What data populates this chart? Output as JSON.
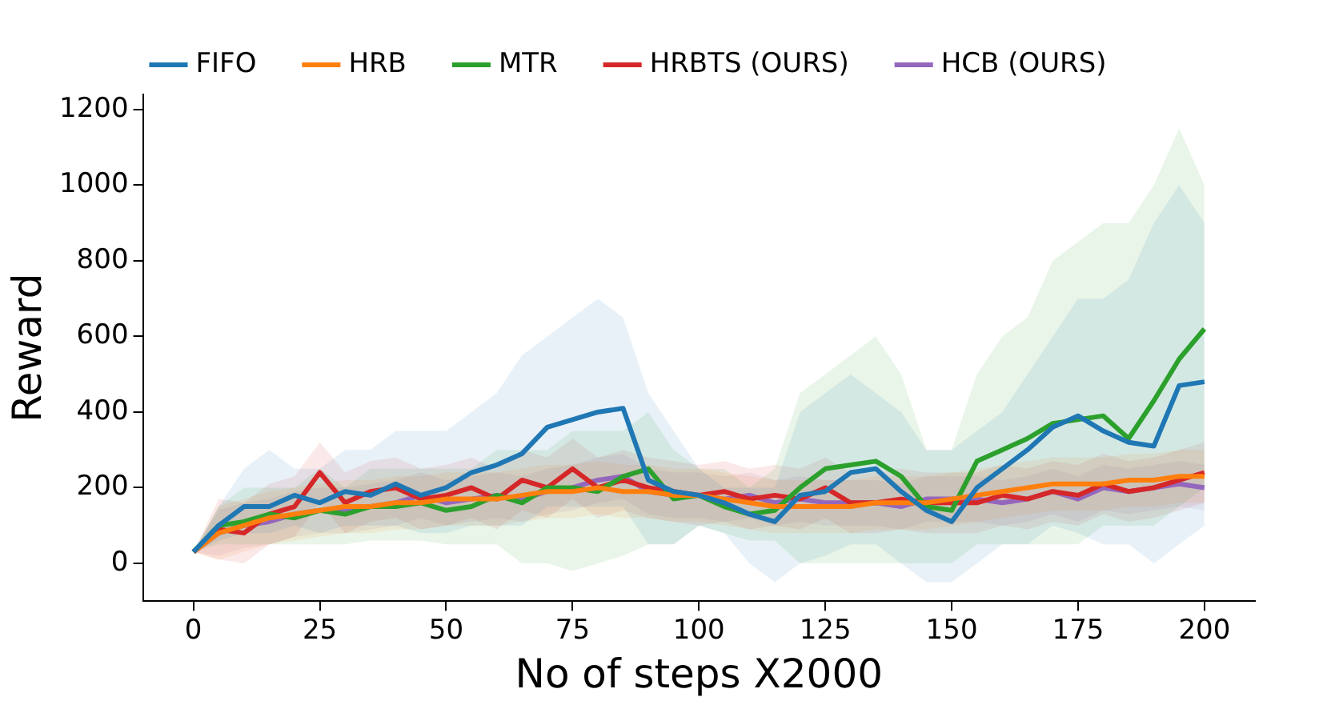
{
  "chart_data": {
    "type": "line",
    "xlabel": "No of steps X2000",
    "ylabel": "Reward",
    "xlim": [
      -10,
      210
    ],
    "ylim": [
      -100,
      1240
    ],
    "xticks": [
      0,
      25,
      50,
      75,
      100,
      125,
      150,
      175,
      200
    ],
    "yticks": [
      0,
      200,
      400,
      600,
      800,
      1000,
      1200
    ],
    "grid": false,
    "legend": "top",
    "marker": "none",
    "line_style": "solid",
    "x": [
      0,
      5,
      10,
      15,
      20,
      25,
      30,
      35,
      40,
      45,
      50,
      55,
      60,
      65,
      70,
      75,
      80,
      85,
      90,
      95,
      100,
      105,
      110,
      115,
      120,
      125,
      130,
      135,
      140,
      145,
      150,
      155,
      160,
      165,
      170,
      175,
      180,
      185,
      190,
      195,
      200
    ],
    "series": [
      {
        "name": "FIFO",
        "color": "#1f77b4",
        "values": [
          30,
          100,
          150,
          150,
          180,
          160,
          190,
          180,
          210,
          180,
          200,
          240,
          260,
          290,
          360,
          380,
          400,
          410,
          220,
          190,
          180,
          160,
          130,
          110,
          180,
          190,
          240,
          250,
          190,
          140,
          110,
          200,
          250,
          300,
          360,
          390,
          350,
          320,
          310,
          470,
          480
        ],
        "upper": [
          30,
          150,
          250,
          300,
          250,
          250,
          300,
          300,
          350,
          350,
          350,
          400,
          450,
          550,
          600,
          650,
          700,
          650,
          450,
          350,
          250,
          200,
          200,
          200,
          400,
          450,
          500,
          450,
          400,
          300,
          300,
          350,
          400,
          500,
          600,
          700,
          700,
          750,
          900,
          1000,
          900
        ],
        "lower": [
          30,
          60,
          80,
          80,
          100,
          80,
          100,
          100,
          100,
          80,
          80,
          100,
          100,
          100,
          150,
          150,
          150,
          150,
          50,
          50,
          100,
          80,
          0,
          -50,
          0,
          20,
          50,
          50,
          0,
          -50,
          -50,
          0,
          50,
          50,
          100,
          80,
          50,
          50,
          0,
          50,
          100
        ]
      },
      {
        "name": "HRB",
        "color": "#ff7f0e",
        "values": [
          30,
          80,
          100,
          120,
          130,
          140,
          150,
          150,
          160,
          160,
          170,
          170,
          170,
          180,
          190,
          190,
          200,
          190,
          190,
          180,
          180,
          170,
          160,
          150,
          150,
          150,
          150,
          160,
          160,
          160,
          170,
          180,
          190,
          200,
          210,
          210,
          210,
          220,
          220,
          230,
          230
        ],
        "upper": [
          30,
          150,
          170,
          190,
          200,
          210,
          220,
          220,
          230,
          230,
          240,
          240,
          240,
          250,
          260,
          260,
          270,
          260,
          260,
          250,
          250,
          240,
          230,
          220,
          220,
          220,
          220,
          230,
          230,
          230,
          240,
          250,
          260,
          270,
          280,
          280,
          280,
          290,
          290,
          300,
          300
        ],
        "lower": [
          30,
          10,
          30,
          50,
          60,
          70,
          80,
          80,
          90,
          90,
          100,
          100,
          100,
          110,
          120,
          120,
          130,
          120,
          120,
          110,
          110,
          100,
          90,
          80,
          80,
          80,
          80,
          90,
          90,
          90,
          100,
          110,
          120,
          130,
          140,
          140,
          140,
          150,
          150,
          160,
          160
        ]
      },
      {
        "name": "MTR",
        "color": "#2ca02c",
        "values": [
          30,
          100,
          110,
          130,
          120,
          140,
          130,
          150,
          150,
          160,
          140,
          150,
          180,
          160,
          200,
          200,
          190,
          230,
          250,
          170,
          180,
          150,
          130,
          140,
          200,
          250,
          260,
          270,
          230,
          150,
          140,
          270,
          300,
          330,
          370,
          380,
          390,
          330,
          430,
          540,
          620
        ],
        "upper": [
          30,
          150,
          200,
          200,
          200,
          250,
          200,
          250,
          250,
          250,
          250,
          250,
          300,
          300,
          300,
          350,
          350,
          350,
          400,
          300,
          250,
          250,
          200,
          250,
          450,
          500,
          550,
          600,
          500,
          300,
          300,
          500,
          600,
          650,
          800,
          850,
          900,
          900,
          1000,
          1150,
          1000
        ],
        "lower": [
          30,
          50,
          50,
          50,
          50,
          50,
          50,
          60,
          60,
          60,
          50,
          50,
          50,
          0,
          0,
          -20,
          0,
          20,
          50,
          50,
          100,
          80,
          60,
          60,
          0,
          0,
          0,
          0,
          0,
          0,
          0,
          50,
          50,
          50,
          50,
          50,
          100,
          100,
          100,
          150,
          200
        ]
      },
      {
        "name": "HRBTS (OURS)",
        "color": "#d62728",
        "values": [
          30,
          90,
          80,
          130,
          150,
          240,
          160,
          190,
          200,
          170,
          180,
          200,
          170,
          220,
          200,
          250,
          200,
          220,
          200,
          190,
          180,
          190,
          170,
          180,
          170,
          200,
          160,
          160,
          170,
          160,
          160,
          160,
          180,
          170,
          190,
          180,
          210,
          190,
          200,
          220,
          240
        ],
        "upper": [
          30,
          170,
          160,
          210,
          230,
          320,
          240,
          270,
          280,
          250,
          260,
          280,
          250,
          300,
          280,
          330,
          280,
          300,
          280,
          270,
          260,
          270,
          250,
          260,
          250,
          280,
          240,
          240,
          250,
          240,
          240,
          240,
          260,
          250,
          270,
          260,
          290,
          270,
          280,
          300,
          320
        ],
        "lower": [
          30,
          10,
          0,
          50,
          70,
          160,
          80,
          110,
          120,
          90,
          100,
          120,
          90,
          140,
          120,
          170,
          120,
          140,
          120,
          110,
          100,
          110,
          90,
          100,
          90,
          120,
          80,
          80,
          90,
          80,
          80,
          80,
          100,
          90,
          110,
          100,
          130,
          110,
          120,
          140,
          160
        ]
      },
      {
        "name": "HCB (OURS)",
        "color": "#9467bd",
        "values": [
          30,
          80,
          100,
          110,
          130,
          140,
          140,
          150,
          160,
          180,
          160,
          170,
          180,
          170,
          190,
          200,
          220,
          230,
          190,
          180,
          180,
          170,
          180,
          160,
          170,
          160,
          160,
          160,
          150,
          170,
          170,
          170,
          160,
          170,
          190,
          170,
          200,
          190,
          200,
          210,
          200
        ],
        "upper": [
          30,
          140,
          160,
          170,
          190,
          200,
          200,
          210,
          220,
          240,
          220,
          230,
          240,
          230,
          250,
          260,
          280,
          290,
          250,
          240,
          240,
          230,
          240,
          220,
          230,
          220,
          220,
          220,
          210,
          230,
          230,
          230,
          220,
          230,
          250,
          230,
          260,
          250,
          260,
          270,
          260
        ],
        "lower": [
          30,
          20,
          40,
          50,
          70,
          80,
          80,
          90,
          100,
          120,
          100,
          110,
          120,
          110,
          130,
          140,
          160,
          170,
          130,
          120,
          120,
          110,
          120,
          100,
          110,
          100,
          100,
          100,
          90,
          110,
          110,
          110,
          100,
          110,
          130,
          110,
          140,
          130,
          140,
          150,
          140
        ]
      }
    ]
  }
}
